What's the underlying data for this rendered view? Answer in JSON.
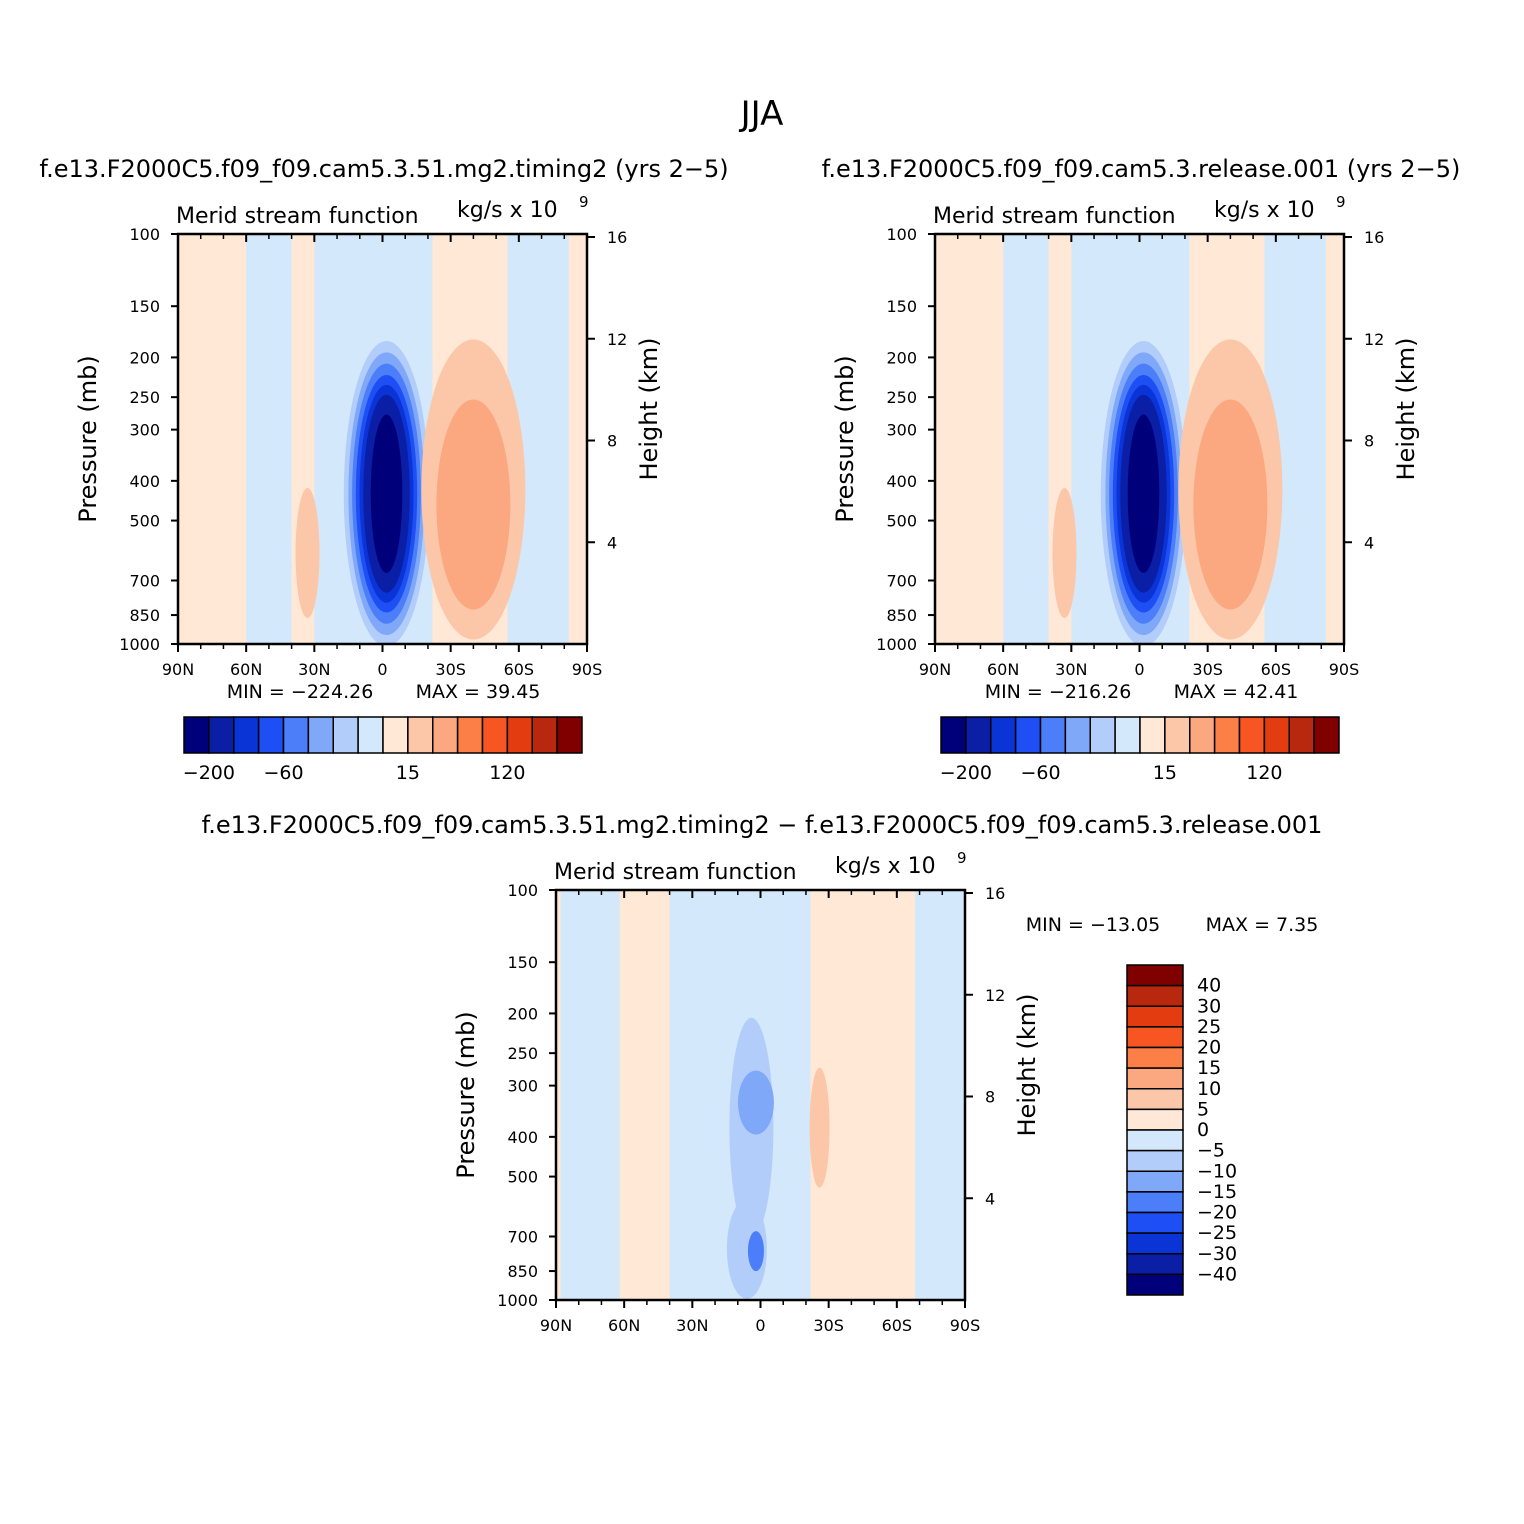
{
  "figure": {
    "title": "JJA"
  },
  "colors": {
    "zero_pos": "#ffe8d6",
    "zero_neg": "#d4e8fb",
    "axis": "#000000"
  },
  "common": {
    "subtitle_left": "Merid stream function",
    "units_base": "kg/s x 10",
    "units_exp": "9",
    "ylabel_left": "Pressure (mb)",
    "ylabel_right": "Height (km)",
    "y_ticks": [
      "100",
      "150",
      "200",
      "250",
      "300",
      "400",
      "500",
      "700",
      "850",
      "1000"
    ],
    "height_ticks": [
      "16",
      "12",
      "8",
      "4"
    ],
    "x_ticks": [
      "90N",
      "60N",
      "30N",
      "0",
      "30S",
      "60S",
      "90S"
    ]
  },
  "chart_data": [
    {
      "type": "contour",
      "title": "f.e13.F2000C5.f09_f09.cam5.3.51.mg2.timing2 (yrs 2−5)",
      "field": "Merid stream function",
      "units": "kg/s x 10^9",
      "ylabel": "Pressure (mb)",
      "ylabel_right": "Height (km)",
      "y_scale": "log",
      "ylim": [
        1000,
        100
      ],
      "xlim": [
        "90N",
        "90S"
      ],
      "min_label": "MIN = −224.26",
      "max_label": "MAX = 39.45",
      "min": -224.26,
      "max": 39.45,
      "features": [
        {
          "lat": 0,
          "p": 450,
          "value": -224.26,
          "desc": "deep negative cell centered near equator"
        },
        {
          "lat": -38,
          "p": 480,
          "value": 39.45,
          "desc": "positive cell near 30S-50S"
        }
      ],
      "colorbar_labels": [
        "−200",
        "−60",
        "15",
        "120"
      ],
      "colorbar_colors": [
        "#00007a",
        "#0a1fa6",
        "#0a34d6",
        "#1d4ff5",
        "#4b7ef8",
        "#80a8f9",
        "#b3cdfb",
        "#d4e8fb",
        "#ffe8d6",
        "#fcc7a9",
        "#fba881",
        "#fb7f47",
        "#f75521",
        "#e23c10",
        "#b8280e",
        "#800000"
      ]
    },
    {
      "type": "contour",
      "title": "f.e13.F2000C5.f09_f09.cam5.3.release.001 (yrs 2−5)",
      "field": "Merid stream function",
      "units": "kg/s x 10^9",
      "ylabel": "Pressure (mb)",
      "ylabel_right": "Height (km)",
      "y_scale": "log",
      "ylim": [
        1000,
        100
      ],
      "xlim": [
        "90N",
        "90S"
      ],
      "min_label": "MIN = −216.26",
      "max_label": "MAX = 42.41",
      "min": -216.26,
      "max": 42.41,
      "features": [
        {
          "lat": 0,
          "p": 450,
          "value": -216.26,
          "desc": "deep negative cell centered near equator"
        },
        {
          "lat": -38,
          "p": 480,
          "value": 42.41,
          "desc": "positive cell near 30S-50S"
        }
      ],
      "colorbar_labels": [
        "−200",
        "−60",
        "15",
        "120"
      ],
      "colorbar_colors": [
        "#00007a",
        "#0a1fa6",
        "#0a34d6",
        "#1d4ff5",
        "#4b7ef8",
        "#80a8f9",
        "#b3cdfb",
        "#d4e8fb",
        "#ffe8d6",
        "#fcc7a9",
        "#fba881",
        "#fb7f47",
        "#f75521",
        "#e23c10",
        "#b8280e",
        "#800000"
      ]
    },
    {
      "type": "contour",
      "title": "f.e13.F2000C5.f09_f09.cam5.3.51.mg2.timing2 − f.e13.F2000C5.f09_f09.cam5.3.release.001",
      "field": "Merid stream function",
      "units": "kg/s x 10^9",
      "ylabel": "Pressure (mb)",
      "ylabel_right": "Height (km)",
      "y_scale": "log",
      "ylim": [
        1000,
        100
      ],
      "xlim": [
        "90N",
        "90S"
      ],
      "min_label": "MIN = −13.05",
      "max_label": "MAX = 7.35",
      "min": -13.05,
      "max": 7.35,
      "colorbar_labels": [
        "40",
        "30",
        "25",
        "20",
        "15",
        "10",
        "5",
        "0",
        "−5",
        "−10",
        "−15",
        "−20",
        "−25",
        "−30",
        "−40"
      ],
      "colorbar_colors": [
        "#800000",
        "#b8280e",
        "#e23c10",
        "#f75521",
        "#fb7f47",
        "#fba881",
        "#fcc7a9",
        "#ffe8d6",
        "#d4e8fb",
        "#b3cdfb",
        "#80a8f9",
        "#4b7ef8",
        "#1d4ff5",
        "#0a34d6",
        "#0a1fa6",
        "#00007a"
      ]
    }
  ]
}
